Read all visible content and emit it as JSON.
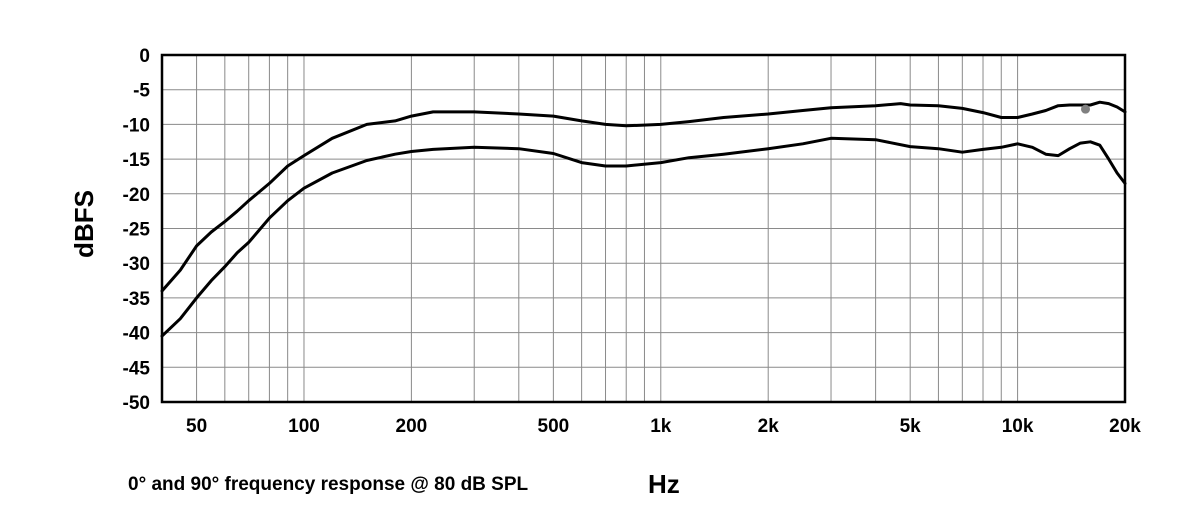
{
  "caption": "0° and 90° frequency response @ 80 dB SPL",
  "chart_data": {
    "type": "line",
    "title": "",
    "xlabel": "Hz",
    "ylabel": "dBFS",
    "x_scale": "log",
    "xlim": [
      40,
      20000
    ],
    "ylim": [
      -50,
      0
    ],
    "grid": true,
    "x_tick_values": [
      50,
      100,
      200,
      500,
      1000,
      2000,
      5000,
      10000,
      20000
    ],
    "x_tick_labels": [
      "50",
      "100",
      "200",
      "500",
      "1k",
      "2k",
      "5k",
      "10k",
      "20k"
    ],
    "y_ticks": [
      0,
      -5,
      -10,
      -15,
      -20,
      -25,
      -30,
      -35,
      -40,
      -45,
      -50
    ],
    "series": [
      {
        "x": [
          40,
          45,
          50,
          55,
          60,
          65,
          70,
          80,
          90,
          100,
          120,
          150,
          180,
          200,
          230,
          300,
          400,
          500,
          600,
          700,
          800,
          1000,
          1200,
          1500,
          2000,
          2500,
          3000,
          4000,
          4700,
          5000,
          6000,
          7000,
          8000,
          9000,
          10000,
          11000,
          12000,
          13000,
          14000,
          15000,
          16000,
          17000,
          18000,
          19000,
          20000
        ],
        "y": [
          -34,
          -31,
          -27.5,
          -25.5,
          -24,
          -22.5,
          -21,
          -18.5,
          -16,
          -14.5,
          -12,
          -10,
          -9.5,
          -8.8,
          -8.2,
          -8.2,
          -8.5,
          -8.8,
          -9.5,
          -10,
          -10.2,
          -10,
          -9.6,
          -9,
          -8.5,
          -8,
          -7.6,
          -7.3,
          -7,
          -7.2,
          -7.3,
          -7.7,
          -8.3,
          -9,
          -9,
          -8.5,
          -8,
          -7.3,
          -7.2,
          -7.2,
          -7.2,
          -6.8,
          -7,
          -7.5,
          -8.2
        ],
        "color": "#000000"
      },
      {
        "x": [
          40,
          45,
          50,
          55,
          60,
          65,
          70,
          80,
          90,
          100,
          120,
          150,
          180,
          200,
          230,
          300,
          400,
          500,
          600,
          700,
          800,
          1000,
          1200,
          1500,
          2000,
          2500,
          3000,
          4000,
          5000,
          6000,
          7000,
          8000,
          9000,
          10000,
          11000,
          12000,
          13000,
          14000,
          15000,
          16000,
          17000,
          18000,
          19000,
          20000
        ],
        "y": [
          -40.5,
          -38,
          -35,
          -32.5,
          -30.5,
          -28.5,
          -27,
          -23.5,
          -21,
          -19.2,
          -17,
          -15.2,
          -14.3,
          -13.9,
          -13.6,
          -13.3,
          -13.5,
          -14.2,
          -15.5,
          -16,
          -16,
          -15.5,
          -14.8,
          -14.3,
          -13.5,
          -12.8,
          -12,
          -12.2,
          -13.2,
          -13.5,
          -14,
          -13.6,
          -13.3,
          -12.8,
          -13.3,
          -14.3,
          -14.5,
          -13.5,
          -12.7,
          -12.5,
          -13,
          -15,
          -17,
          -18.5
        ],
        "color": "#000000"
      }
    ],
    "marker": {
      "x": 15500,
      "y": -7.8,
      "color": "#808080"
    }
  }
}
